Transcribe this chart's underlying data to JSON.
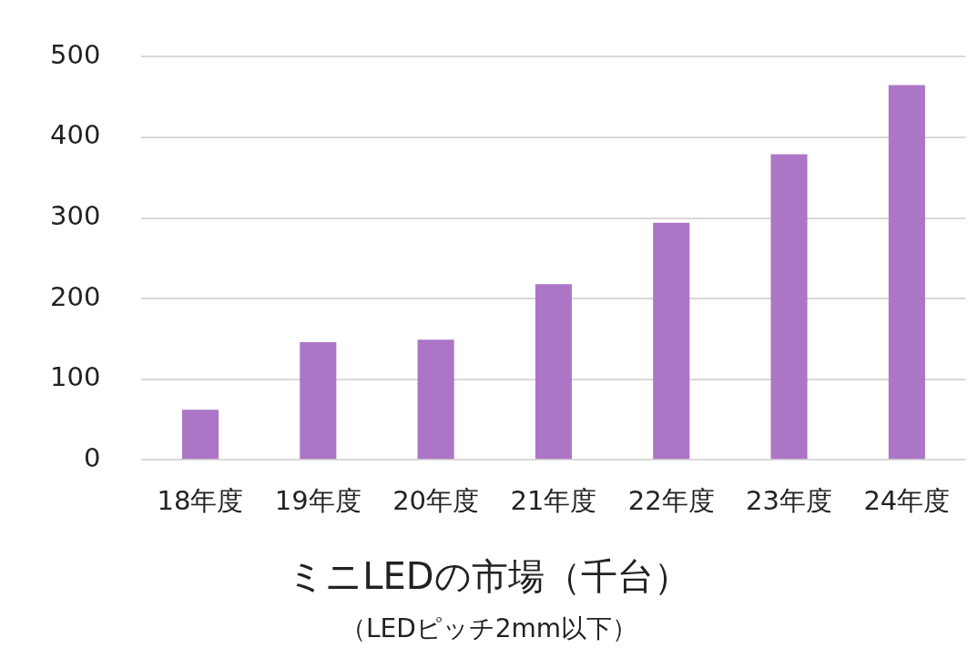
{
  "chart_data": {
    "type": "bar",
    "title": "ミニLEDの市場（千台）",
    "subtitle": "（LEDピッチ2mm以下）",
    "categories": [
      "18年度",
      "19年度",
      "20年度",
      "21年度",
      "22年度",
      "23年度",
      "24年度"
    ],
    "values": [
      62,
      146,
      149,
      218,
      294,
      379,
      465
    ],
    "color": "#ad75c6",
    "ylim": [
      0,
      500
    ],
    "yticks": [
      0,
      100,
      200,
      300,
      400,
      500
    ],
    "grid": "y",
    "legend": false
  }
}
